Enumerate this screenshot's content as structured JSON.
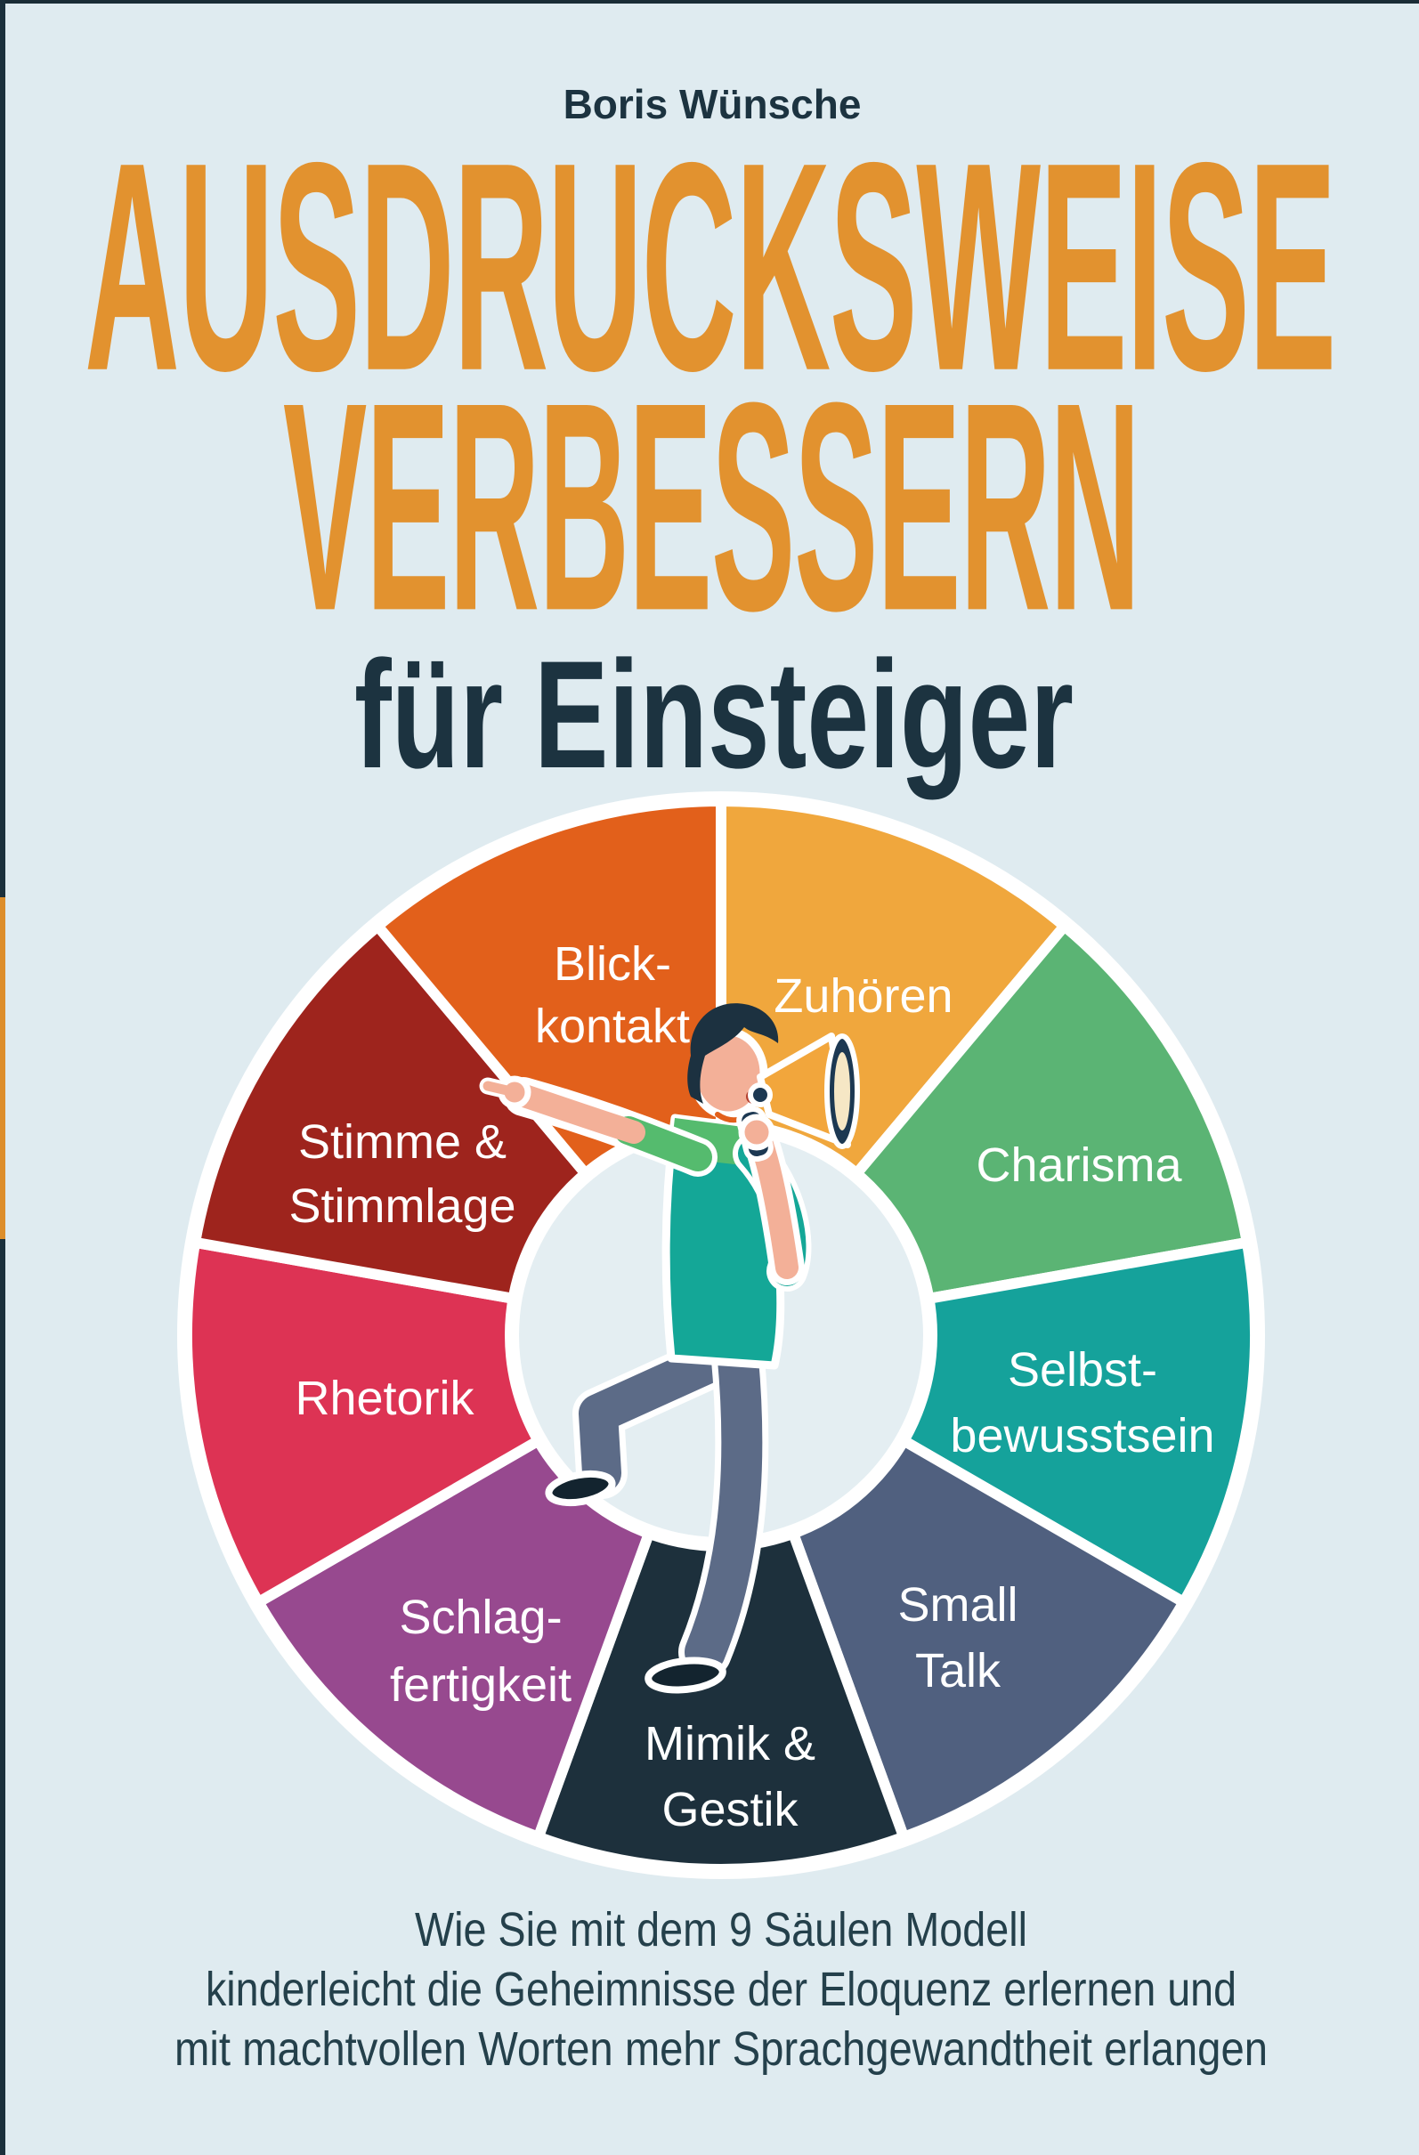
{
  "page": {
    "background": "#DFEBF0",
    "text_color": "#1C3340",
    "spine_color": "#1B303C",
    "spine_accent_color": "#DD8E2B"
  },
  "author": "Boris Wünsche",
  "title": {
    "line1": "AUSDRUCKSWEISE",
    "line2": "VERBESSERN",
    "color": "#E2922F"
  },
  "subtitle": {
    "text": "für Einsteiger"
  },
  "tagline": {
    "line1": "Wie Sie mit dem 9 Säulen Modell",
    "line2": "kinderleicht die Geheimnisse der Eloquenz erlernen und",
    "line3": "mit machtvollen Worten mehr Sprachgewandtheit erlangen",
    "color": "#24404B"
  },
  "wheel": {
    "description": "9 Säulen Modell",
    "divider_color": "#FFFFFF",
    "hub_color": "#E4EEF2",
    "segments": [
      {
        "label": "Zuhören",
        "lines": [
          "Zuhören"
        ],
        "color": "#F0A73D"
      },
      {
        "label": "Charisma",
        "lines": [
          "Charisma"
        ],
        "color": "#5BB474"
      },
      {
        "label": "Selbstbewusstsein",
        "lines": [
          "Selbst-",
          "bewusstsein"
        ],
        "color": "#15A29B"
      },
      {
        "label": "Small Talk",
        "lines": [
          "Small",
          "Talk"
        ],
        "color": "#50607F"
      },
      {
        "label": "Mimik & Gestik",
        "lines": [
          "Mimik &",
          "Gestik"
        ],
        "color": "#1D303C"
      },
      {
        "label": "Schlagfertigkeit",
        "lines": [
          "Schlag-",
          "fertigkeit"
        ],
        "color": "#97498F"
      },
      {
        "label": "Rhetorik",
        "lines": [
          "Rhetorik"
        ],
        "color": "#DD3354"
      },
      {
        "label": "Stimme & Stimmlage",
        "lines": [
          "Stimme &",
          "Stimmlage"
        ],
        "color": "#9E241D"
      },
      {
        "label": "Blickkontakt",
        "lines": [
          "Blick-",
          "kontakt"
        ],
        "color": "#E2601B"
      }
    ]
  },
  "illustration": {
    "name": "speaker-with-megaphone",
    "shirt": "#14A797",
    "shirt_accent": "#55BB6E",
    "pants": "#5C6B87",
    "skin": "#F3B098",
    "hair": "#1C3140",
    "shoes": "#13242F",
    "mouth": "#B3402F",
    "megaphone": "#F2A63C",
    "megaphone_rim": "#1C3852",
    "megaphone_inner": "#F6E7C5"
  }
}
